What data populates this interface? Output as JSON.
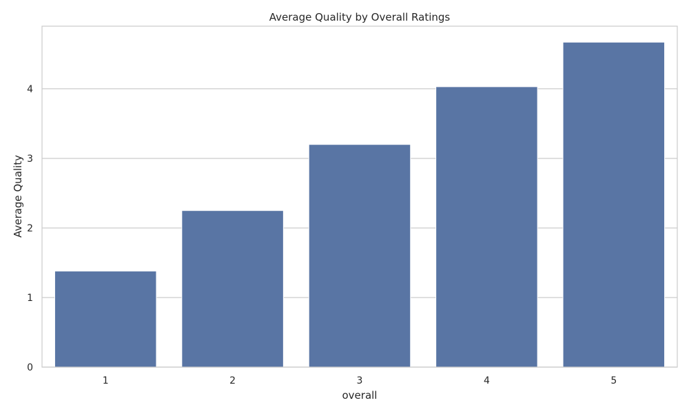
{
  "chart_data": {
    "type": "bar",
    "title": "Average Quality by Overall Ratings",
    "xlabel": "overall",
    "ylabel": "Average Quality",
    "categories": [
      "1",
      "2",
      "3",
      "4",
      "5"
    ],
    "values": [
      1.38,
      2.25,
      3.2,
      4.03,
      4.67
    ],
    "ylim": [
      0,
      4.9
    ],
    "yticks": [
      0,
      1,
      2,
      3,
      4
    ],
    "grid": true,
    "bar_color": "#5975a4",
    "grid_color": "#cccccc",
    "axis_color": "#cccccc"
  }
}
